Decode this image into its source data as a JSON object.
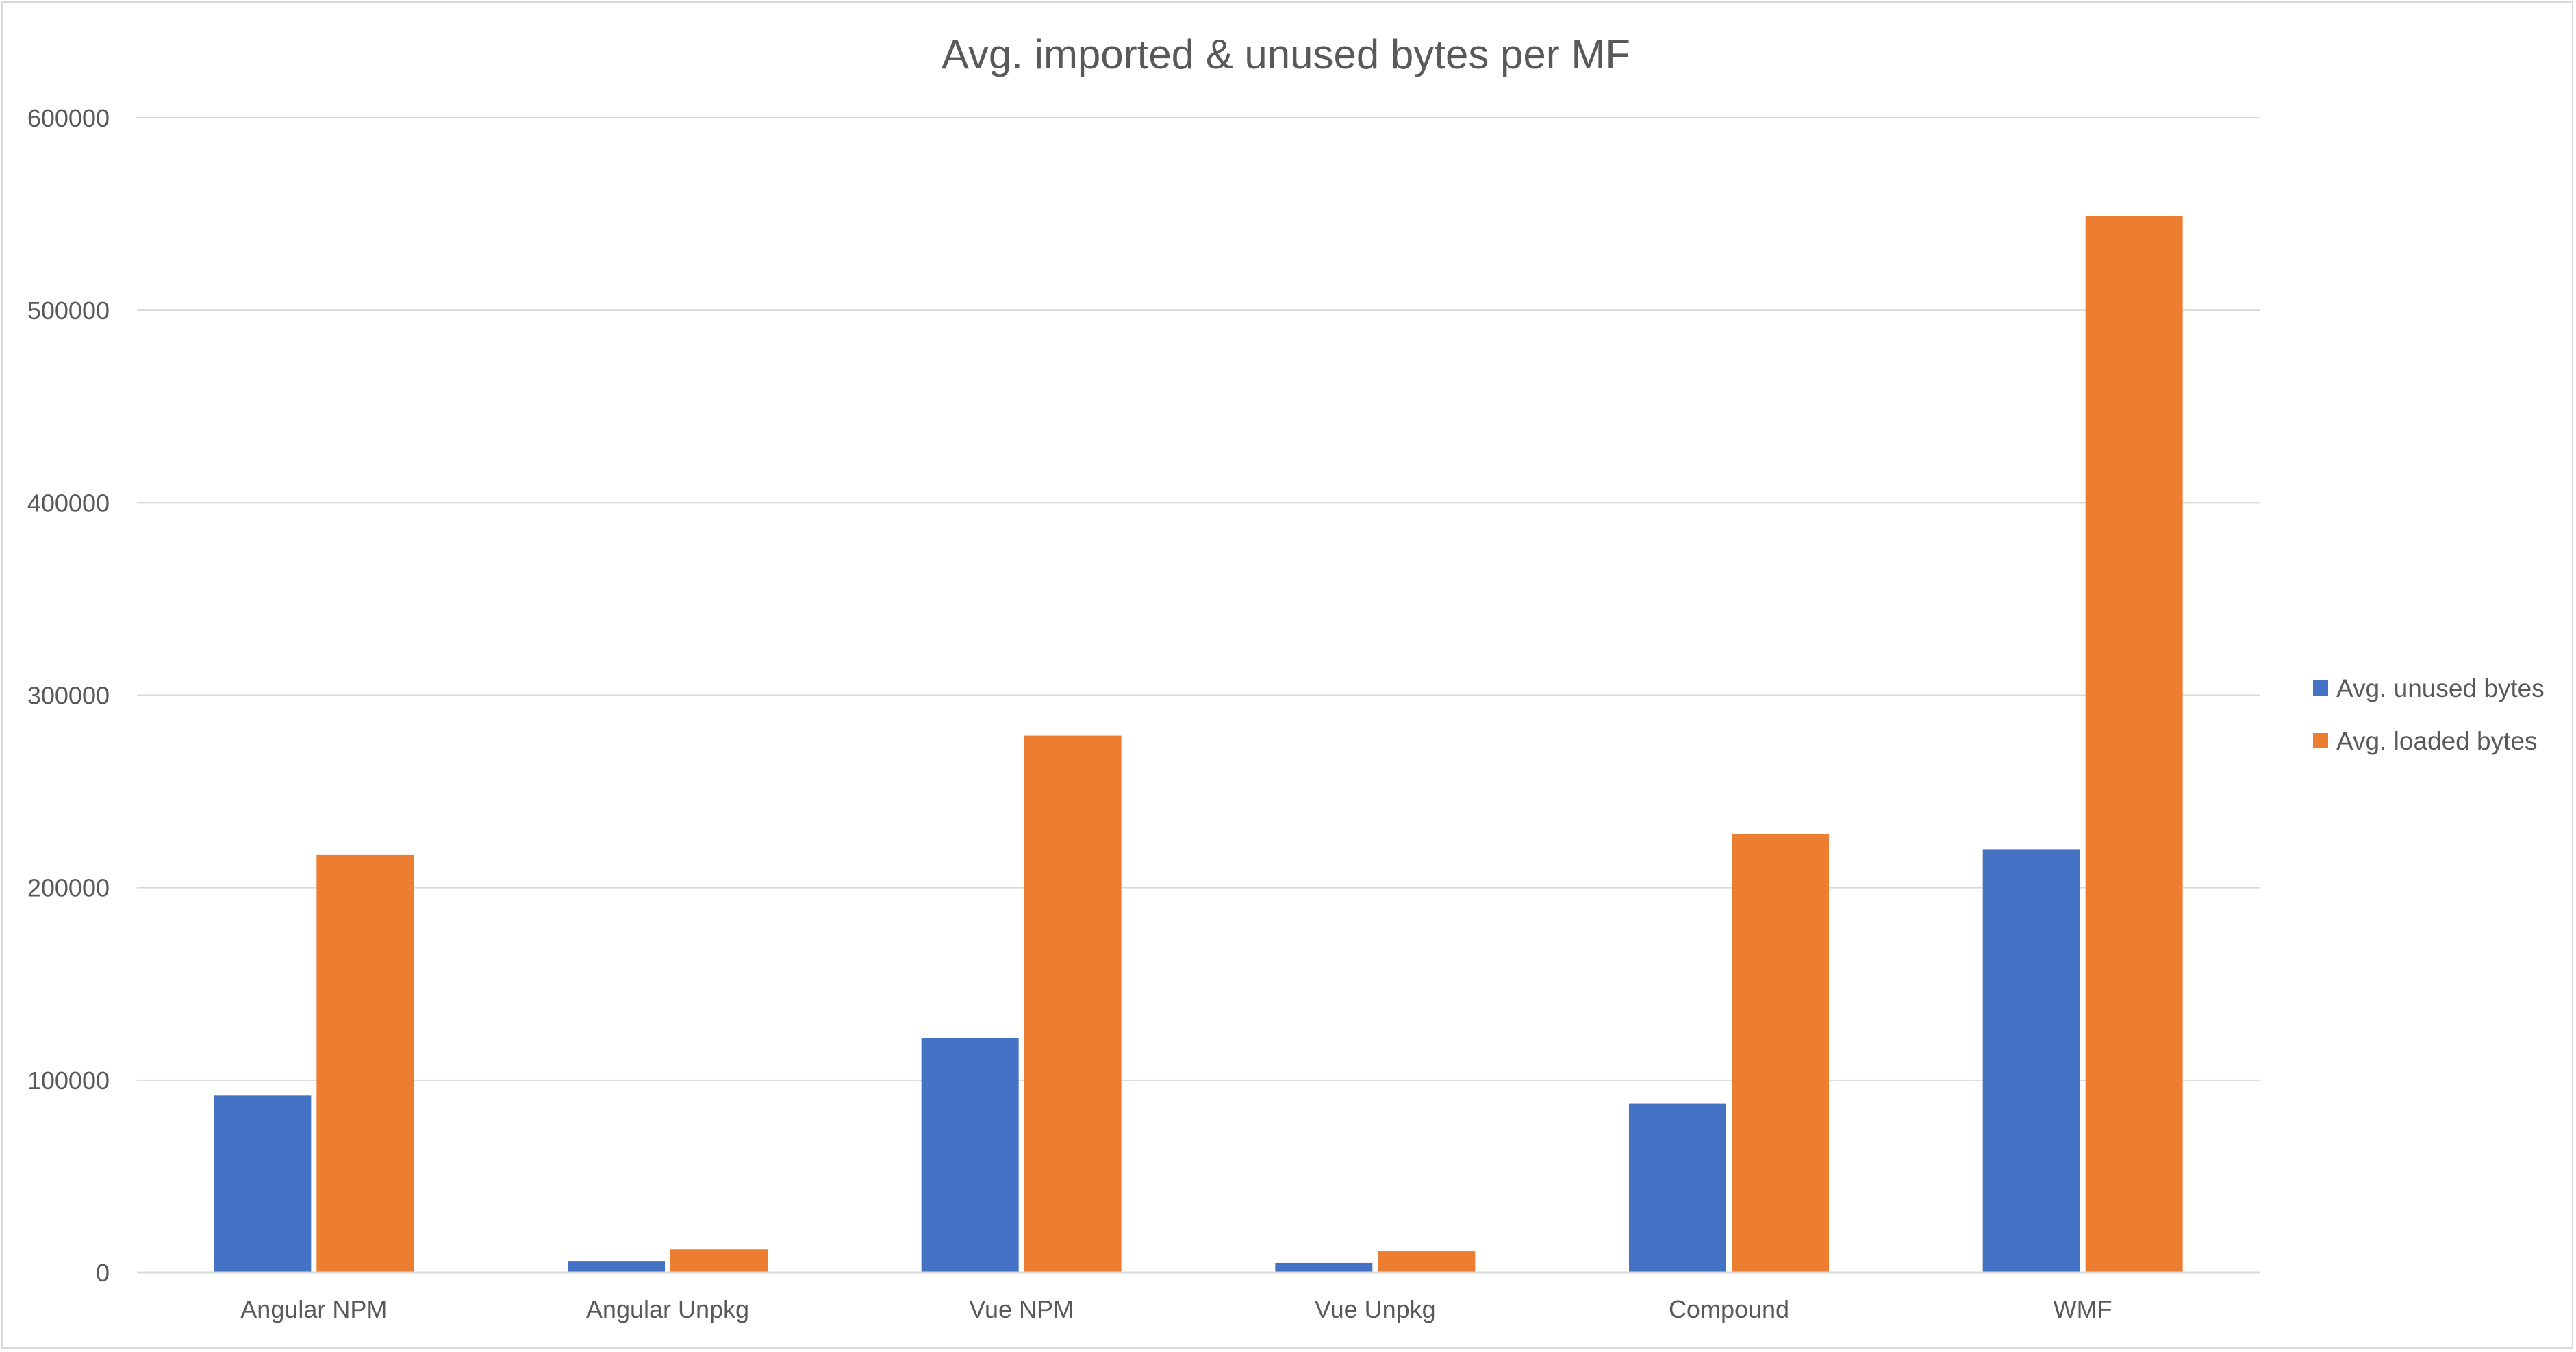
{
  "chart_data": {
    "type": "bar",
    "title": "Avg. imported & unused bytes per MF",
    "xlabel": "",
    "ylabel": "",
    "categories": [
      "Angular NPM",
      "Angular Unpkg",
      "Vue NPM",
      "Vue Unpkg",
      "Compound",
      "WMF"
    ],
    "series": [
      {
        "name": "Avg. unused bytes",
        "color": "#4472C4",
        "values": [
          92000,
          6000,
          122000,
          5000,
          88000,
          220000
        ]
      },
      {
        "name": "Avg. loaded bytes",
        "color": "#ED7D31",
        "values": [
          217000,
          12000,
          279000,
          11000,
          228000,
          549000
        ]
      }
    ],
    "ylim": [
      0,
      600000
    ],
    "yticks": [
      "0",
      "100000",
      "200000",
      "300000",
      "400000",
      "500000",
      "600000"
    ],
    "grid": true,
    "legend_position": "right"
  }
}
